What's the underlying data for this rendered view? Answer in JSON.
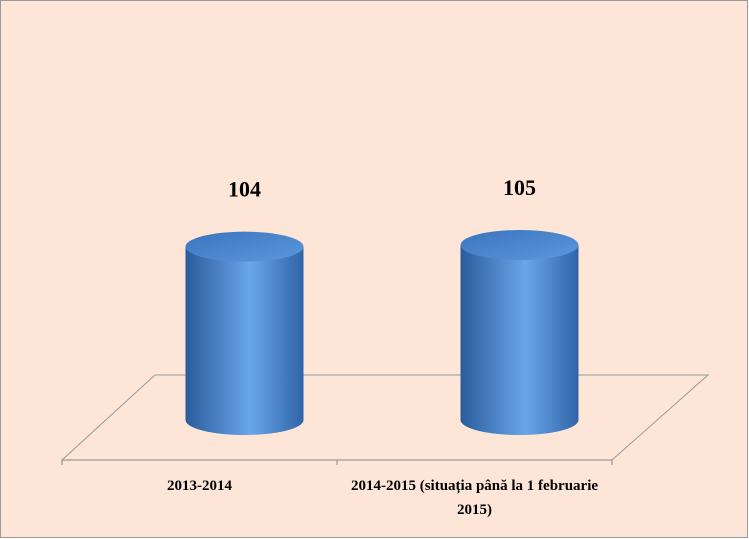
{
  "chart_data": {
    "type": "cylinder",
    "categories": [
      "2013-2014",
      "2014-2015 (situația până la 1 februarie 2015)"
    ],
    "values": [
      104,
      105
    ],
    "color": "#5b9be0",
    "background": "#fde6d8"
  }
}
